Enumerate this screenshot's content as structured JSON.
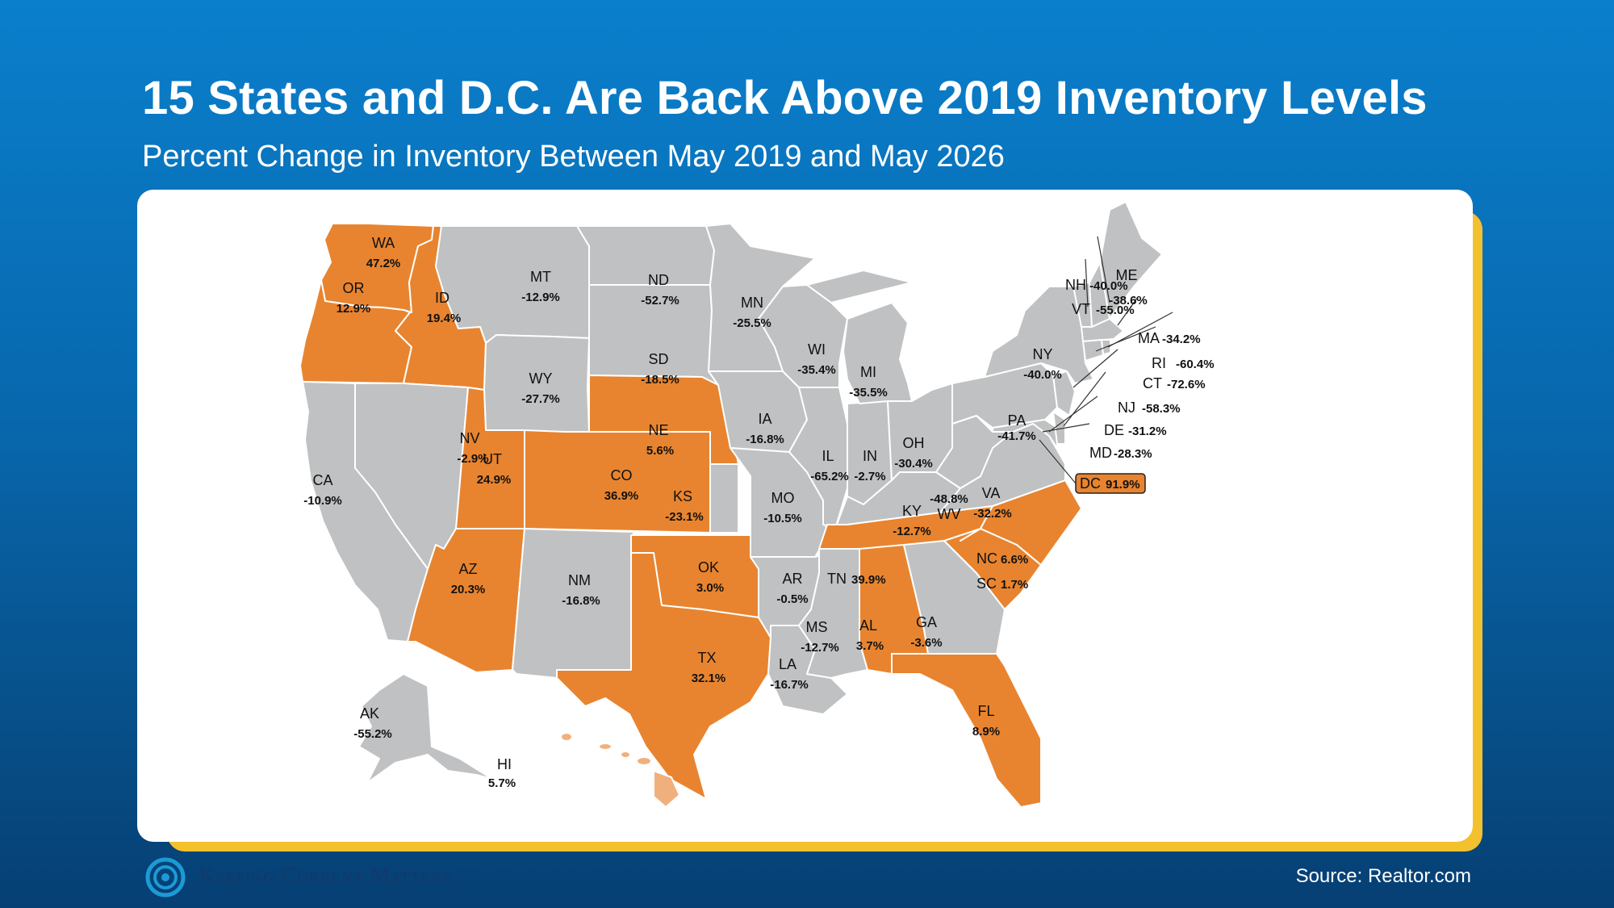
{
  "header": {
    "title": "15 States and D.C. Are Back Above 2019 Inventory Levels",
    "subtitle": "Percent Change in Inventory Between May 2019 and May 2026"
  },
  "colors": {
    "above_2019": "#e8842f",
    "below_2019": "#bfc1c2",
    "hawaii": "#f0b07d",
    "accent_yellow": "#f3c12e"
  },
  "states": [
    {
      "abbr": "WA",
      "value": "47.2%",
      "above": true
    },
    {
      "abbr": "OR",
      "value": "12.9%",
      "above": true
    },
    {
      "abbr": "ID",
      "value": "19.4%",
      "above": true
    },
    {
      "abbr": "MT",
      "value": "-12.9%",
      "above": false
    },
    {
      "abbr": "ND",
      "value": "-52.7%",
      "above": false
    },
    {
      "abbr": "MN",
      "value": "-25.5%",
      "above": false
    },
    {
      "abbr": "SD",
      "value": "-18.5%",
      "above": false
    },
    {
      "abbr": "WY",
      "value": "-27.7%",
      "above": false
    },
    {
      "abbr": "NV",
      "value": "-2.9%",
      "above": false
    },
    {
      "abbr": "CA",
      "value": "-10.9%",
      "above": false
    },
    {
      "abbr": "UT",
      "value": "24.9%",
      "above": true
    },
    {
      "abbr": "CO",
      "value": "36.9%",
      "above": true
    },
    {
      "abbr": "NE",
      "value": "5.6%",
      "above": true
    },
    {
      "abbr": "KS",
      "value": "-23.1%",
      "above": false
    },
    {
      "abbr": "IA",
      "value": "-16.8%",
      "above": false
    },
    {
      "abbr": "WI",
      "value": "-35.4%",
      "above": false
    },
    {
      "abbr": "MI",
      "value": "-35.5%",
      "above": false
    },
    {
      "abbr": "IL",
      "value": "-65.2%",
      "above": false
    },
    {
      "abbr": "IN",
      "value": "-2.7%",
      "above": false
    },
    {
      "abbr": "OH",
      "value": "-30.4%",
      "above": false
    },
    {
      "abbr": "MO",
      "value": "-10.5%",
      "above": false
    },
    {
      "abbr": "AZ",
      "value": "20.3%",
      "above": true
    },
    {
      "abbr": "NM",
      "value": "-16.8%",
      "above": false
    },
    {
      "abbr": "OK",
      "value": "3.0%",
      "above": true
    },
    {
      "abbr": "TX",
      "value": "32.1%",
      "above": true
    },
    {
      "abbr": "AR",
      "value": "-0.5%",
      "above": false
    },
    {
      "abbr": "LA",
      "value": "-16.7%",
      "above": false
    },
    {
      "abbr": "MS",
      "value": "-12.7%",
      "above": false
    },
    {
      "abbr": "AL",
      "value": "3.7%",
      "above": true
    },
    {
      "abbr": "GA",
      "value": "-3.6%",
      "above": false
    },
    {
      "abbr": "FL",
      "value": "8.9%",
      "above": true
    },
    {
      "abbr": "TN",
      "value": "39.9%",
      "above": true
    },
    {
      "abbr": "KY",
      "value": "-12.7%",
      "above": false
    },
    {
      "abbr": "NC",
      "value": "6.6%",
      "above": true
    },
    {
      "abbr": "SC",
      "value": "1.7%",
      "above": true
    },
    {
      "abbr": "WV",
      "value": "-48.8%",
      "above": false
    },
    {
      "abbr": "VA",
      "value": "-32.2%",
      "above": false
    },
    {
      "abbr": "PA",
      "value": "-41.7%",
      "above": false
    },
    {
      "abbr": "NY",
      "value": "-40.0%",
      "above": false
    },
    {
      "abbr": "ME",
      "value": "-38.6%",
      "above": false
    },
    {
      "abbr": "NH",
      "value": "-40.0%",
      "above": false
    },
    {
      "abbr": "VT",
      "value": "-55.0%",
      "above": false
    },
    {
      "abbr": "MA",
      "value": "-34.2%",
      "above": false
    },
    {
      "abbr": "RI",
      "value": "-60.4%",
      "above": false
    },
    {
      "abbr": "CT",
      "value": "-72.6%",
      "above": false
    },
    {
      "abbr": "NJ",
      "value": "-58.3%",
      "above": false
    },
    {
      "abbr": "DE",
      "value": "-31.2%",
      "above": false
    },
    {
      "abbr": "MD",
      "value": "-28.3%",
      "above": false
    },
    {
      "abbr": "DC",
      "value": "91.9%",
      "above": true
    },
    {
      "abbr": "AK",
      "value": "-55.2%",
      "above": false
    },
    {
      "abbr": "HI",
      "value": "5.7%",
      "above": true
    }
  ],
  "footer": {
    "logo_text": "Keeping Current Matters",
    "source": "Source: Realtor.com"
  }
}
